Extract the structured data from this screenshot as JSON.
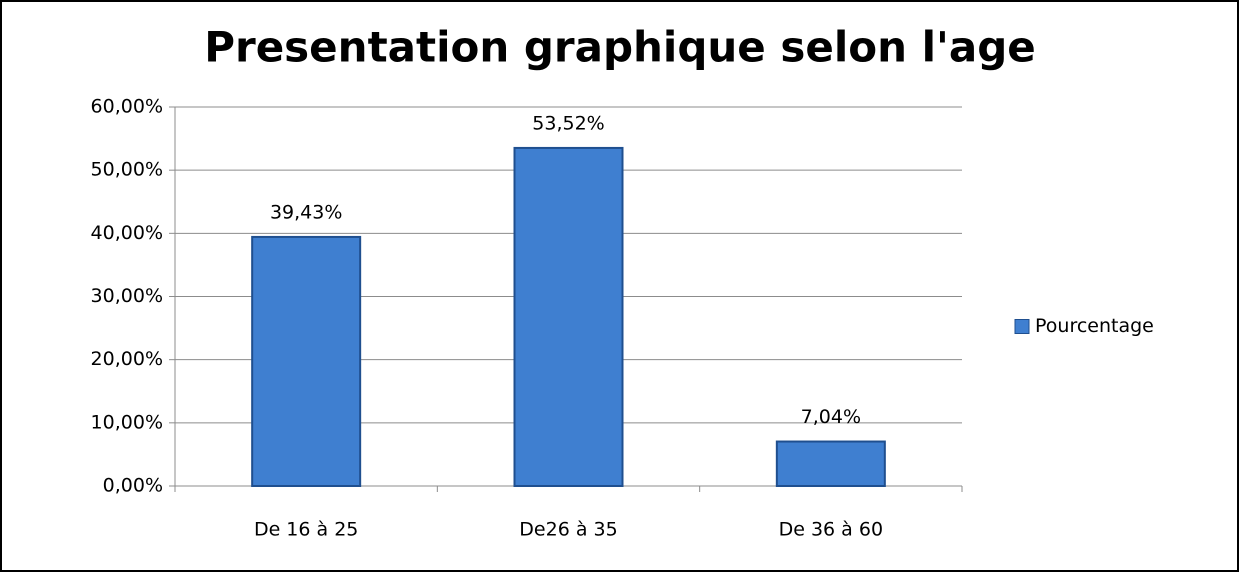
{
  "chart_data": {
    "type": "bar",
    "title": "Presentation graphique selon l'age",
    "categories": [
      "De 16 à 25",
      "De26 à 35",
      "De 36 à 60"
    ],
    "series": [
      {
        "name": "Pourcentage",
        "color": "#3f7fd0",
        "values": [
          39.43,
          53.52,
          7.04
        ],
        "value_labels": [
          "39,43%",
          "53,52%",
          "7,04%"
        ]
      }
    ],
    "ylim": [
      0,
      60
    ],
    "yticks": [
      {
        "value": 0,
        "label": "0,00%"
      },
      {
        "value": 10,
        "label": "10,00%"
      },
      {
        "value": 20,
        "label": "20,00%"
      },
      {
        "value": 30,
        "label": "30,00%"
      },
      {
        "value": 40,
        "label": "40,00%"
      },
      {
        "value": 50,
        "label": "50,00%"
      },
      {
        "value": 60,
        "label": "60,00%"
      }
    ],
    "grid": true,
    "legend": "right"
  }
}
